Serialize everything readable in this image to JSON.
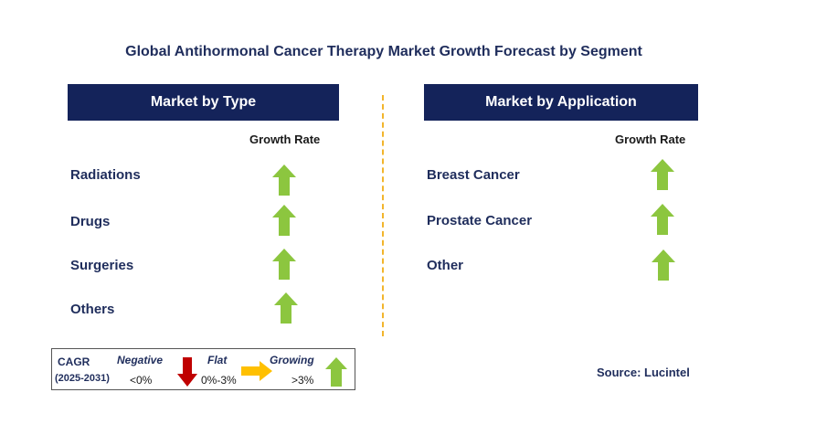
{
  "title": "Global Antihormonal Cancer Therapy Market Growth Forecast by Segment",
  "type_panel": {
    "header": "Market by Type",
    "growth_label": "Growth Rate",
    "rows": [
      {
        "label": "Radiations",
        "trend": "growing"
      },
      {
        "label": "Drugs",
        "trend": "growing"
      },
      {
        "label": "Surgeries",
        "trend": "growing"
      },
      {
        "label": "Others",
        "trend": "growing"
      }
    ]
  },
  "application_panel": {
    "header": "Market by Application",
    "growth_label": "Growth Rate",
    "rows": [
      {
        "label": "Breast Cancer",
        "trend": "growing"
      },
      {
        "label": "Prostate Cancer",
        "trend": "growing"
      },
      {
        "label": "Other",
        "trend": "growing"
      }
    ]
  },
  "legend": {
    "cagr": "CAGR",
    "period": "(2025-2031)",
    "negative": {
      "label": "Negative",
      "range": "<0%",
      "icon": "down-arrow-icon"
    },
    "flat": {
      "label": "Flat",
      "range": "0%-3%",
      "icon": "right-arrow-icon"
    },
    "growing": {
      "label": "Growing",
      "range": ">3%",
      "icon": "up-arrow-icon"
    }
  },
  "source": "Source: Lucintel",
  "colors": {
    "header_bg": "#14235a",
    "growing": "#8cc63f",
    "negative": "#c00000",
    "flat": "#ffc000",
    "divider": "#f2b52c"
  }
}
